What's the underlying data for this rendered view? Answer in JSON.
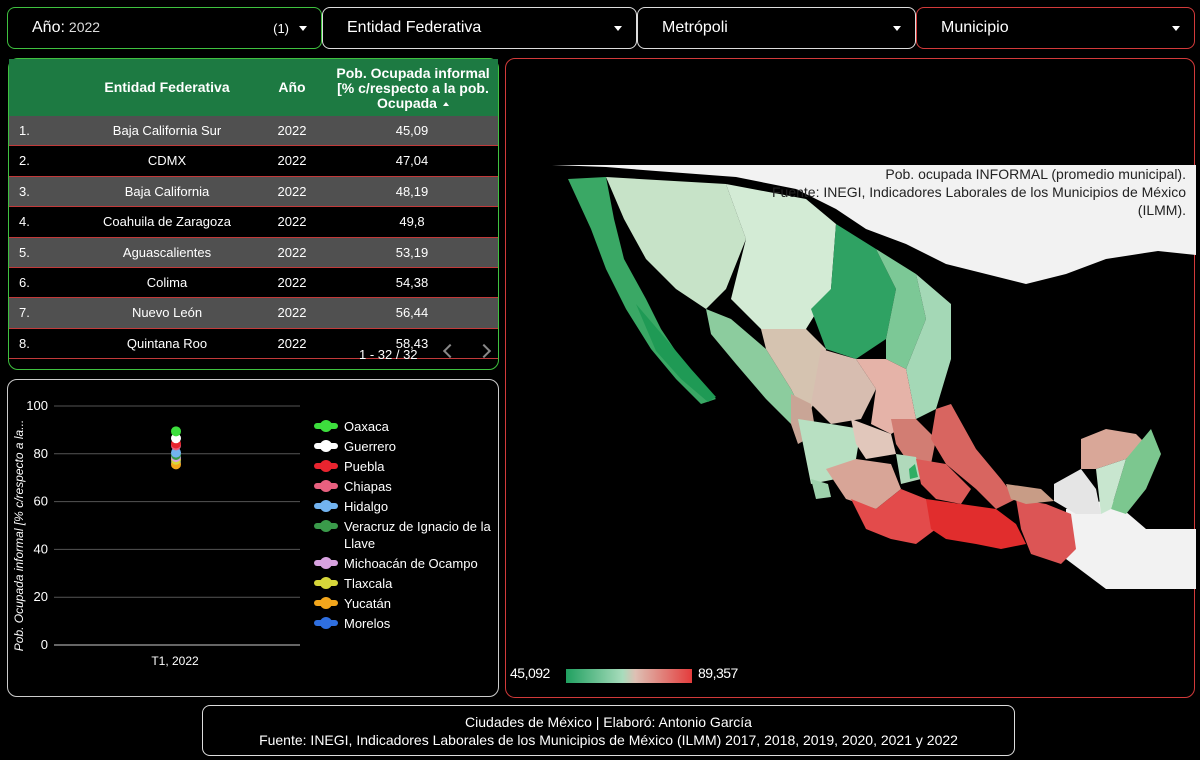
{
  "filters": {
    "anio": {
      "label": "Año:",
      "value": "2022",
      "count": "(1)"
    },
    "entidad": {
      "label": "Entidad Federativa"
    },
    "metropoli": {
      "label": "Metrópoli"
    },
    "municipio": {
      "label": "Municipio"
    }
  },
  "table": {
    "headers": {
      "entidad": "Entidad Federativa",
      "anio": "Año",
      "valor_l1": "Pob. Ocupada informal",
      "valor_l2": "[% c/respecto a la pob.",
      "valor_l3": "Ocupada"
    },
    "rows": [
      {
        "idx": "1.",
        "entidad": "Baja California Sur",
        "anio": "2022",
        "valor": "45,09"
      },
      {
        "idx": "2.",
        "entidad": "CDMX",
        "anio": "2022",
        "valor": "47,04"
      },
      {
        "idx": "3.",
        "entidad": "Baja California",
        "anio": "2022",
        "valor": "48,19"
      },
      {
        "idx": "4.",
        "entidad": "Coahuila de Zaragoza",
        "anio": "2022",
        "valor": "49,8"
      },
      {
        "idx": "5.",
        "entidad": "Aguascalientes",
        "anio": "2022",
        "valor": "53,19"
      },
      {
        "idx": "6.",
        "entidad": "Colima",
        "anio": "2022",
        "valor": "54,38"
      },
      {
        "idx": "7.",
        "entidad": "Nuevo León",
        "anio": "2022",
        "valor": "56,44"
      },
      {
        "idx": "8.",
        "entidad": "Quintana Roo",
        "anio": "2022",
        "valor": "58,43"
      }
    ],
    "pager": "1 - 32 / 32"
  },
  "chart_data": {
    "type": "scatter",
    "categories": [
      "T1, 2022"
    ],
    "ylabel": "Pob. Ocupada informal [% c/respecto a la...",
    "ylim": [
      0,
      100
    ],
    "yticks": [
      0,
      20,
      40,
      60,
      80,
      100
    ],
    "grid": true,
    "legend_position": "right",
    "series": [
      {
        "name": "Oaxaca",
        "color": "#3dde3d",
        "values": [
          89.4
        ]
      },
      {
        "name": "Guerrero",
        "color": "#ffffff",
        "values": [
          86.5
        ]
      },
      {
        "name": "Puebla",
        "color": "#e8242f",
        "values": [
          84.3
        ]
      },
      {
        "name": "Chiapas",
        "color": "#e8607f",
        "values": [
          83.5
        ]
      },
      {
        "name": "Hidalgo",
        "color": "#72b3f0",
        "values": [
          80.5
        ]
      },
      {
        "name": "Veracruz de Ignacio de la Llave",
        "color": "#3a9a4a",
        "values": [
          79.5
        ]
      },
      {
        "name": "Michoacán de Ocampo",
        "color": "#d8a2e0",
        "values": [
          78.6
        ]
      },
      {
        "name": "Tlaxcala",
        "color": "#d6d63a",
        "values": [
          77.5
        ]
      },
      {
        "name": "Yucatán",
        "color": "#f2a61c",
        "values": [
          75.6
        ]
      },
      {
        "name": "Morelos",
        "color": "#2f6fe0",
        "values": [
          76.4
        ]
      }
    ]
  },
  "map": {
    "title_l1": "Pob. ocupada INFORMAL (promedio municipal).",
    "title_l2": "Fuente: INEGI,  Indicadores Laborales de los Municipios de México",
    "title_l3": "(ILMM).",
    "scale_min": "45,092",
    "scale_max": "89,357",
    "low_color": "#20a060",
    "high_color": "#e43c3c"
  },
  "footer": {
    "line1": "Ciudades de México | Elaboró: Antonio García",
    "line2": "Fuente: INEGI, Indicadores Laborales de los Municipios de México (ILMM) 2017, 2018, 2019, 2020, 2021 y 2022"
  }
}
